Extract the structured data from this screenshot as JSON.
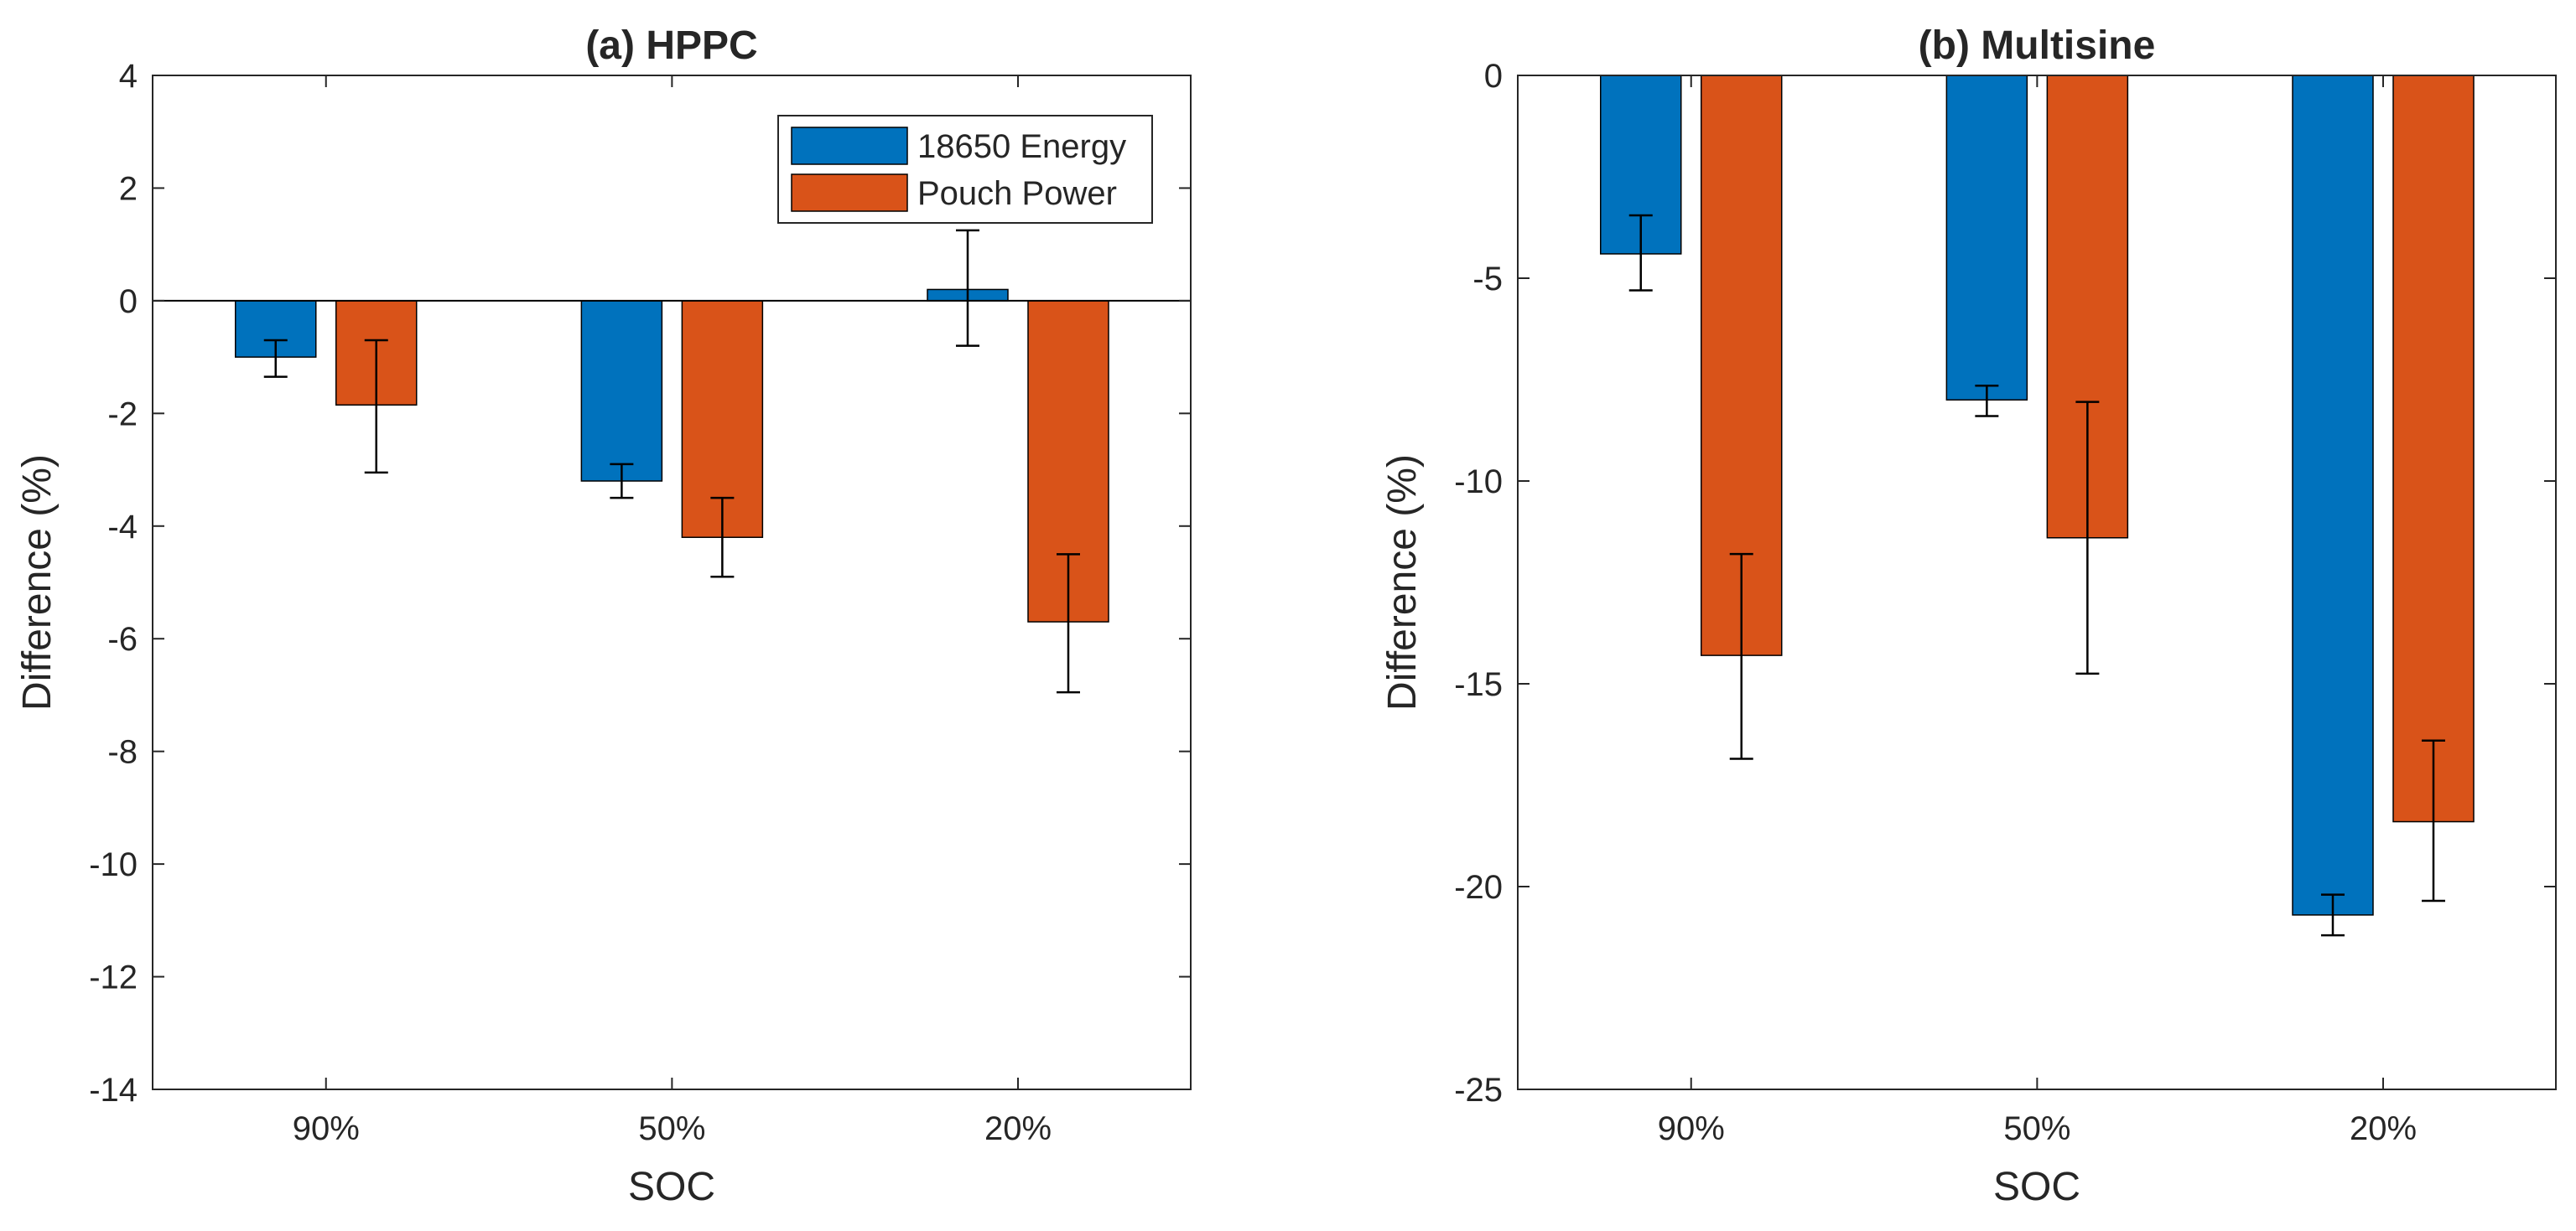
{
  "chart_data": [
    {
      "type": "bar",
      "title": "(a) HPPC",
      "xlabel": "SOC",
      "ylabel": "Difference (%)",
      "categories": [
        "90%",
        "50%",
        "20%"
      ],
      "ylim": [
        -14,
        4
      ],
      "yticks": [
        4,
        2,
        0,
        -2,
        -4,
        -6,
        -8,
        -10,
        -12,
        -14
      ],
      "ytick_labels": [
        "4",
        "2",
        "0",
        "-2",
        "-4",
        "-6",
        "-8",
        "-10",
        "-12",
        "-14"
      ],
      "grid": false,
      "legend": {
        "placement": "top-right"
      },
      "series": [
        {
          "name": "18650 Energy",
          "color": "#0072BD",
          "values": [
            -1.0,
            -3.2,
            0.2
          ],
          "error_low": [
            -1.35,
            -3.5,
            -0.8
          ],
          "error_high": [
            -0.7,
            -2.9,
            1.25
          ]
        },
        {
          "name": "Pouch Power",
          "color": "#D95319",
          "values": [
            -1.85,
            -4.2,
            -5.7
          ],
          "error_low": [
            -3.05,
            -4.9,
            -6.95
          ],
          "error_high": [
            -0.7,
            -3.5,
            -4.5
          ]
        }
      ]
    },
    {
      "type": "bar",
      "title": "(b) Multisine",
      "xlabel": "SOC",
      "ylabel": "Difference (%)",
      "categories": [
        "90%",
        "50%",
        "20%"
      ],
      "ylim": [
        -25,
        0
      ],
      "yticks": [
        0,
        -5,
        -10,
        -15,
        -20,
        -25
      ],
      "ytick_labels": [
        "0",
        "-5",
        "-10",
        "-15",
        "-20",
        "-25"
      ],
      "grid": false,
      "legend": null,
      "series": [
        {
          "name": "18650 Energy",
          "color": "#0072BD",
          "values": [
            -4.4,
            -8.0,
            -20.7
          ],
          "error_low": [
            -5.3,
            -8.4,
            -21.2
          ],
          "error_high": [
            -3.45,
            -7.65,
            -20.2
          ]
        },
        {
          "name": "Pouch Power",
          "color": "#D95319",
          "values": [
            -14.3,
            -11.4,
            -18.4
          ],
          "error_low": [
            -16.85,
            -14.75,
            -20.35
          ],
          "error_high": [
            -11.8,
            -8.05,
            -16.4
          ]
        }
      ]
    }
  ]
}
